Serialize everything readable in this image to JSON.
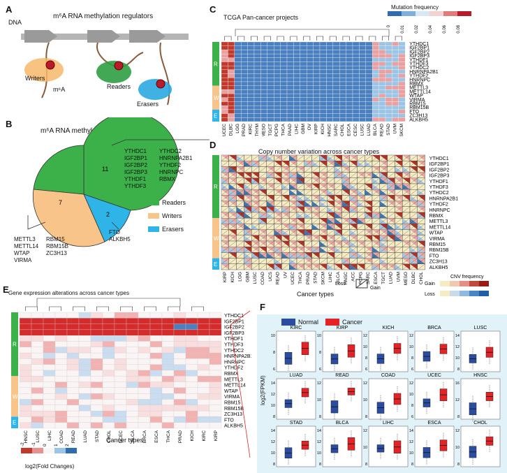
{
  "panels": {
    "A": {
      "label": "A",
      "title": "m⁶A RNA methylation regulators",
      "dna": "DNA",
      "writers": "Writers",
      "m6a": "m⁶A",
      "readers": "Readers",
      "erasers": "Erasers"
    },
    "B": {
      "label": "B",
      "title": "m⁶A RNA methylation regulators",
      "legend": [
        "Readers",
        "Writers",
        "Erasers"
      ],
      "reader_genes_col1": [
        "YTHDC1",
        "IGF2BP1",
        "IGF2BP2",
        "IGF2BP3",
        "YTHDF1",
        "YTHDF3"
      ],
      "reader_genes_col2": [
        "YTHDC2",
        "HNRNPA2B1",
        "YTHDF2",
        "HNRNPC",
        "RBMX"
      ],
      "writer_genes_col1": [
        "METTL3",
        "METTL14",
        "WTAP",
        "VIRMA"
      ],
      "writer_genes_col2": [
        "RBM15",
        "RBM15B",
        "ZC3H13"
      ],
      "eraser_genes": [
        "FTO",
        "ALKBH5"
      ]
    },
    "C": {
      "label": "C",
      "title": "TCGA Pan-cancer projects",
      "legend_title": "Mutation frequency",
      "scale_ticks": [
        "0",
        "0.01",
        "0.02",
        "0.04",
        "0.06",
        "0.08"
      ],
      "groups": [
        "R",
        "W",
        "E"
      ],
      "genes": [
        "YTHDC1",
        "IGF2BP1",
        "IGF2BP2",
        "IGF2BP3",
        "YTHDF1",
        "YTHDF3",
        "YTHDC2",
        "HNRNPA2B1",
        "YTHDF2",
        "HNRNPC",
        "RBMX",
        "METTL3",
        "METTL14",
        "WTAP",
        "VIRMA",
        "RBM15",
        "RBM15B",
        "FTO",
        "ZC3H13",
        "ALKBH5"
      ],
      "cancers": [
        "UCEC",
        "DLBC",
        "LGG",
        "PRAD",
        "KIRC",
        "THYM",
        "MESO",
        "TGCT",
        "PCPG",
        "THCA",
        "PAAD",
        "LIHC",
        "GBM",
        "OV",
        "KIRP",
        "KICH",
        "HNSC",
        "SARC",
        "CHOL",
        "ESCA",
        "CESC",
        "LUSC",
        "LUAD",
        "BLCA",
        "READ",
        "STAD",
        "UVM",
        "SKCM"
      ]
    },
    "D": {
      "label": "D",
      "title": "Copy number variation across cancer types",
      "xlabel": "Cancer types",
      "groups": [
        "R",
        "W",
        "E"
      ],
      "genes": [
        "YTHDC1",
        "IGF2BP1",
        "IGF2BP2",
        "IGF2BP3",
        "YTHDF1",
        "YTHDF3",
        "YTHDC2",
        "HNRNPA2B1",
        "YTHDF2",
        "HNRNPC",
        "RBMX",
        "METTL3",
        "METTL14",
        "WTAP",
        "VIRMA",
        "RBM15",
        "RBM15B",
        "FTO",
        "ZC3H13",
        "ALKBH5"
      ],
      "cancers": [
        "KIRP",
        "KICH",
        "LGG",
        "GBM",
        "LUSC",
        "COAD",
        "UCS",
        "READ",
        "UV",
        "UCEC",
        "THCA",
        "PRAD",
        "STAD",
        "SKCM",
        "LIHC",
        "BLCA",
        "HNSC",
        "ACC",
        "PCPG",
        "SARC",
        "ESCA",
        "TGCT",
        "LUAD",
        "UVM",
        "MESO",
        "DLBC",
        "CHOL"
      ],
      "loss_label": "Loss",
      "gain_label": "Gain",
      "cnv_title": "CNV frequency",
      "cnv_gain": "Gain",
      "cnv_loss": "Loss",
      "cnv_ticks": [
        "0",
        "0.9"
      ]
    },
    "E": {
      "label": "E",
      "title": "Gene expression alterations across cancer types",
      "xlabel": "Cancer types",
      "groups": [
        "R",
        "W",
        "E"
      ],
      "genes": [
        "YTHDC1",
        "IGF2BP1",
        "IGF2BP2",
        "IGF2BP3",
        "YTHDF1",
        "YTHDF3",
        "YTHDC2",
        "HNRNPA2B1",
        "HNRNPC",
        "YTHDF2",
        "RBMX",
        "METTL3",
        "METTL14",
        "WTAP",
        "VIRMA",
        "RBM15",
        "RBM15B",
        "ZC3H13",
        "FTO",
        "ALKBH5"
      ],
      "cancers": [
        "HNSC",
        "LUSC",
        "LIHC",
        "COAD",
        "READ",
        "LUAD",
        "STAD",
        "CHOL",
        "UCEC",
        "BLCA",
        "BRCA",
        "ESCA",
        "THCA",
        "PRAD",
        "KICH",
        "KIRC",
        "KIRP"
      ],
      "scale_ticks": [
        "-2",
        "-1",
        "0",
        "1",
        "2"
      ],
      "scale_label": "log2(Fold Changes)"
    },
    "F": {
      "label": "F",
      "legend": [
        "Normal",
        "Cancer"
      ],
      "ylabel": "log2(FPKM)",
      "plots": [
        {
          "name": "KIRC",
          "ticks": [
            "10",
            "8",
            "6"
          ]
        },
        {
          "name": "KIRP",
          "ticks": [
            "10",
            "8",
            "6"
          ]
        },
        {
          "name": "KICH",
          "ticks": [
            "12",
            "10",
            "8",
            "6"
          ]
        },
        {
          "name": "BRCA",
          "ticks": [
            "12",
            "10",
            "8",
            "6"
          ]
        },
        {
          "name": "LUSC",
          "ticks": [
            "14",
            "12",
            "10",
            "8"
          ]
        },
        {
          "name": "LUAD",
          "ticks": [
            "14",
            "12",
            "10",
            "8"
          ]
        },
        {
          "name": "READ",
          "ticks": [
            "12",
            "10",
            "8"
          ]
        },
        {
          "name": "COAD",
          "ticks": [
            "12",
            "10",
            "8"
          ]
        },
        {
          "name": "UCEC",
          "ticks": [
            "12",
            "10",
            "8",
            "6"
          ]
        },
        {
          "name": "HNSC",
          "ticks": [
            "16",
            "12",
            "8"
          ]
        },
        {
          "name": "STAD",
          "ticks": [
            "14",
            "12",
            "10",
            "8"
          ]
        },
        {
          "name": "BLCA",
          "ticks": [
            "14",
            "12",
            "10",
            "8"
          ]
        },
        {
          "name": "LIHC",
          "ticks": [
            "12",
            "10",
            "8"
          ]
        },
        {
          "name": "ESCA",
          "ticks": [
            "14",
            "12",
            "10",
            "8"
          ]
        },
        {
          "name": "CHOL",
          "ticks": [
            "12",
            "10",
            "8"
          ]
        }
      ]
    }
  },
  "colors": {
    "readers": "#3cb14a",
    "writers": "#f8c48a",
    "erasers": "#2eb4e6",
    "normal": "#2b4da1",
    "cancer": "#e32326"
  }
}
